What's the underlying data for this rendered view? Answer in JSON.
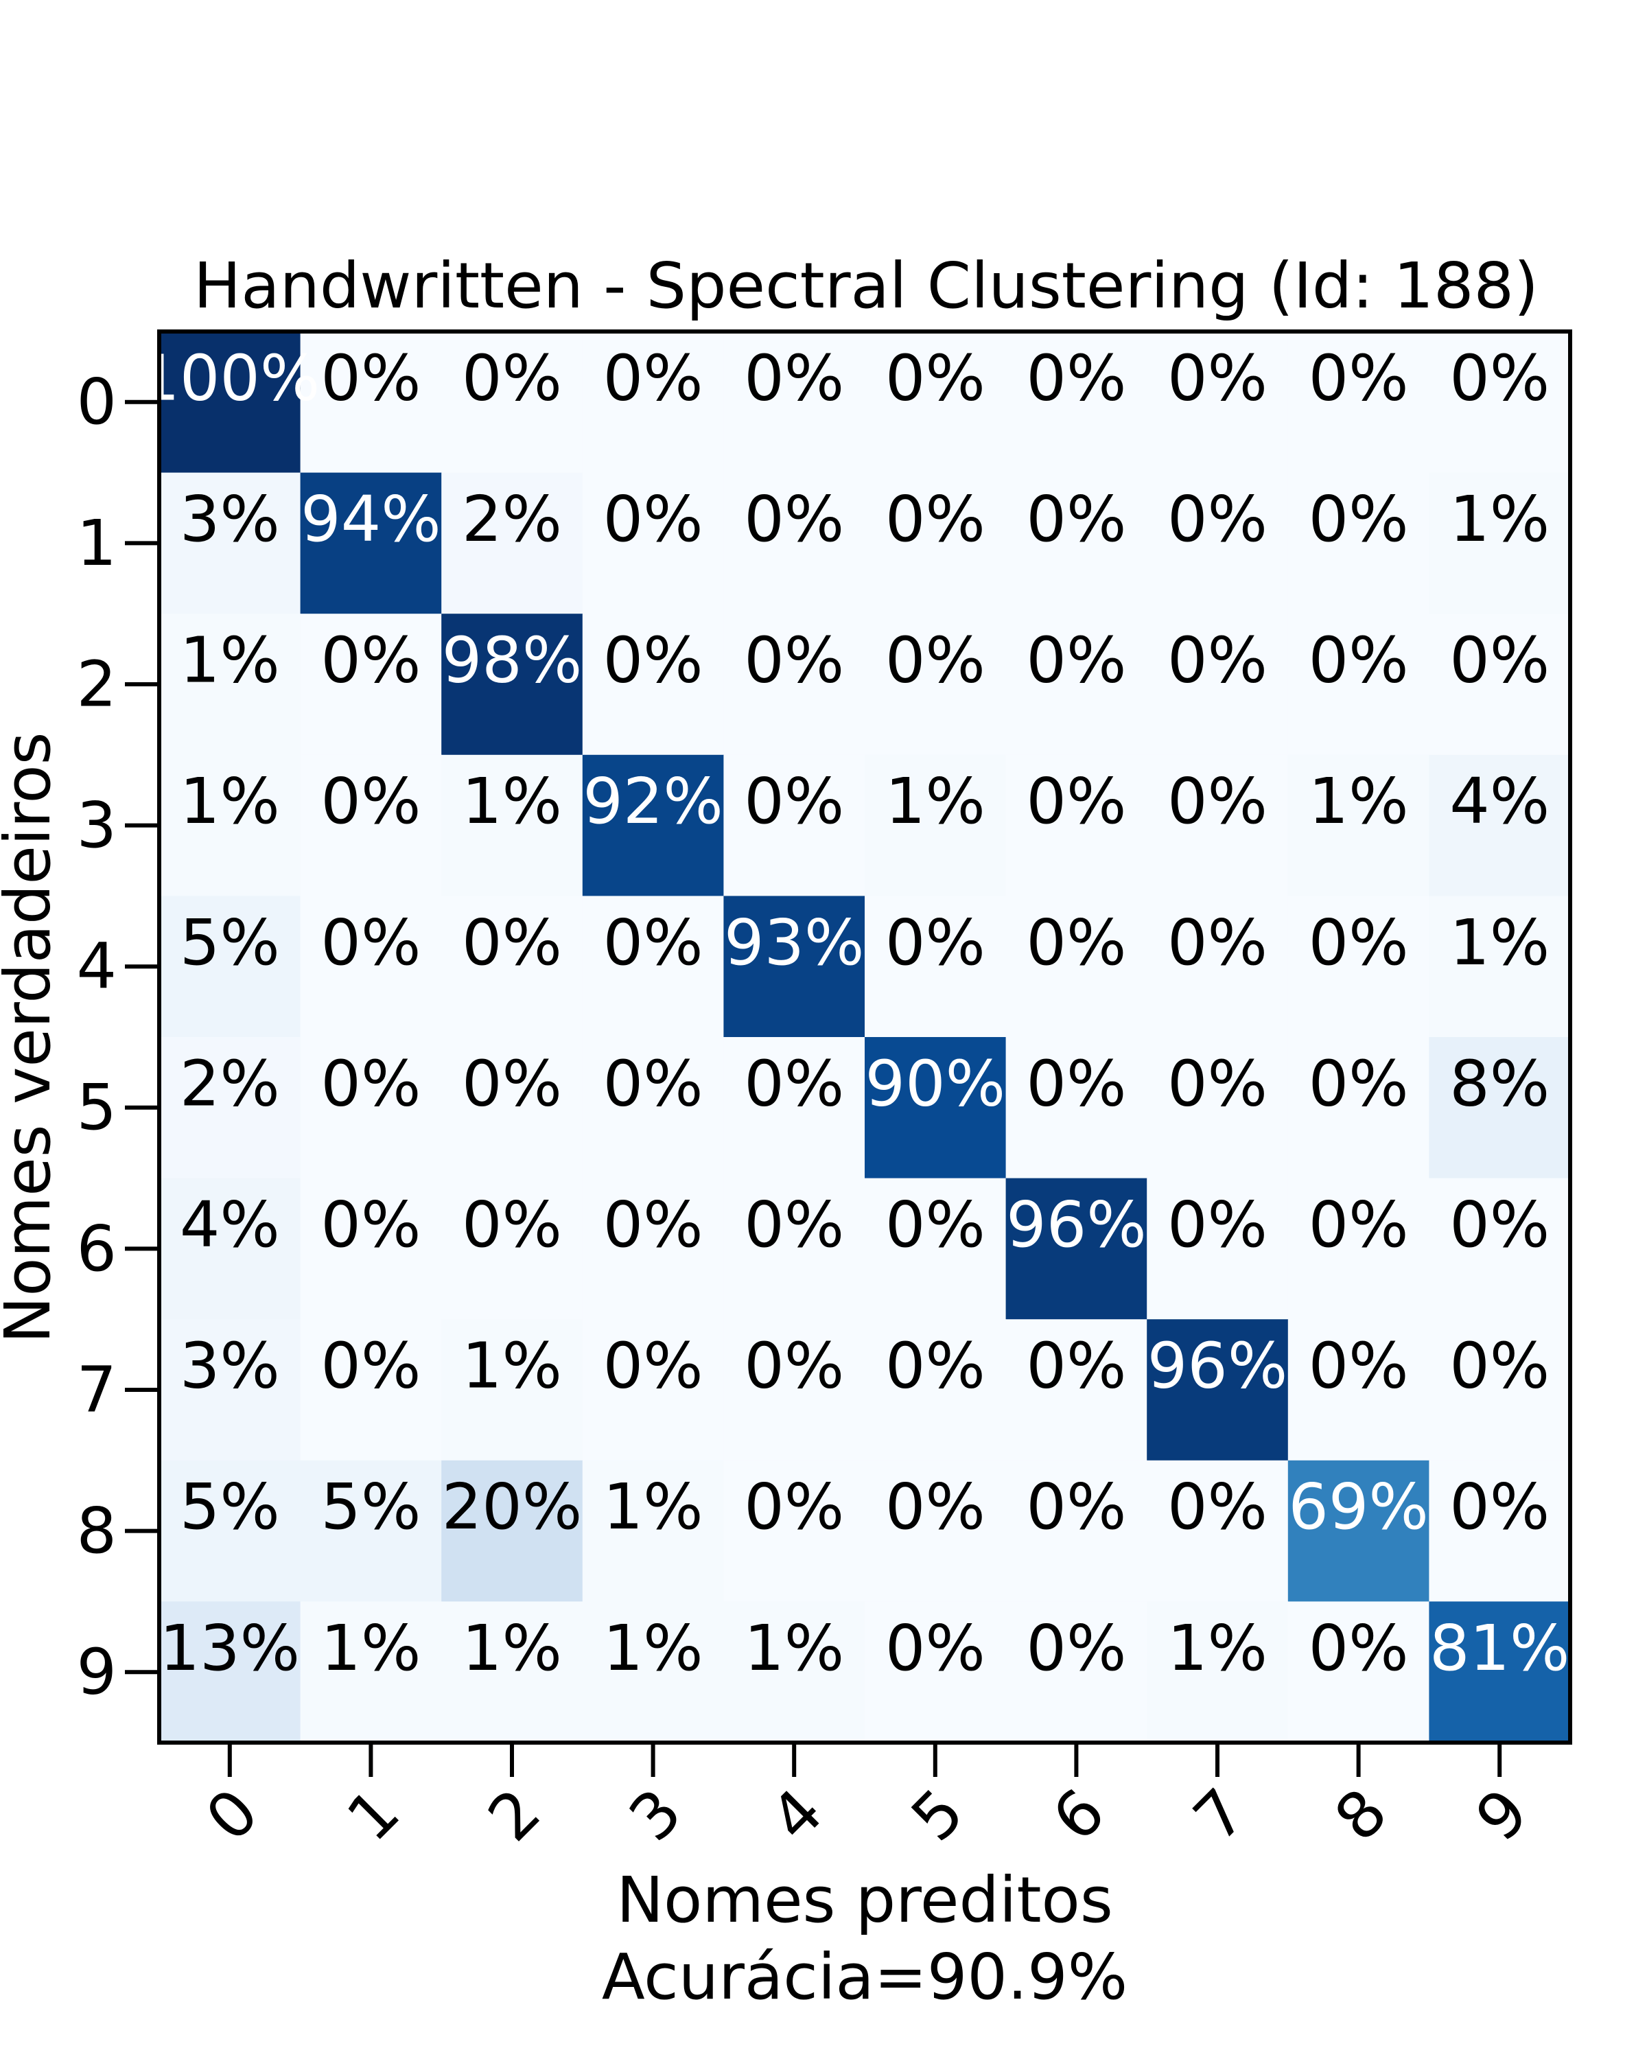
{
  "chart_data": {
    "type": "heatmap",
    "title": "Handwritten - Spectral Clustering (Id: 188)",
    "xlabel": "Nomes preditos",
    "xlabel_note": "Acurácia=90.9%",
    "ylabel": "Nomes verdadeiros",
    "x_categories": [
      "0",
      "1",
      "2",
      "3",
      "4",
      "5",
      "6",
      "7",
      "8",
      "9"
    ],
    "y_categories": [
      "0",
      "1",
      "2",
      "3",
      "4",
      "5",
      "6",
      "7",
      "8",
      "9"
    ],
    "values": [
      [
        100,
        0,
        0,
        0,
        0,
        0,
        0,
        0,
        0,
        0
      ],
      [
        3,
        94,
        2,
        0,
        0,
        0,
        0,
        0,
        0,
        1
      ],
      [
        1,
        0,
        98,
        0,
        0,
        0,
        0,
        0,
        0,
        0
      ],
      [
        1,
        0,
        1,
        92,
        0,
        1,
        0,
        0,
        1,
        4
      ],
      [
        5,
        0,
        0,
        0,
        93,
        0,
        0,
        0,
        0,
        1
      ],
      [
        2,
        0,
        0,
        0,
        0,
        90,
        0,
        0,
        0,
        8
      ],
      [
        4,
        0,
        0,
        0,
        0,
        0,
        96,
        0,
        0,
        0
      ],
      [
        3,
        0,
        1,
        0,
        0,
        0,
        0,
        96,
        0,
        0
      ],
      [
        5,
        5,
        20,
        1,
        0,
        0,
        0,
        0,
        69,
        0
      ],
      [
        13,
        1,
        1,
        1,
        1,
        0,
        0,
        1,
        0,
        81
      ]
    ],
    "value_suffix": "%",
    "colormap": "Blues",
    "grid": false,
    "colors": {
      "low": "#f7fbff",
      "high": "#08306b",
      "text_dark": "#000000",
      "text_light": "#ffffff"
    }
  }
}
